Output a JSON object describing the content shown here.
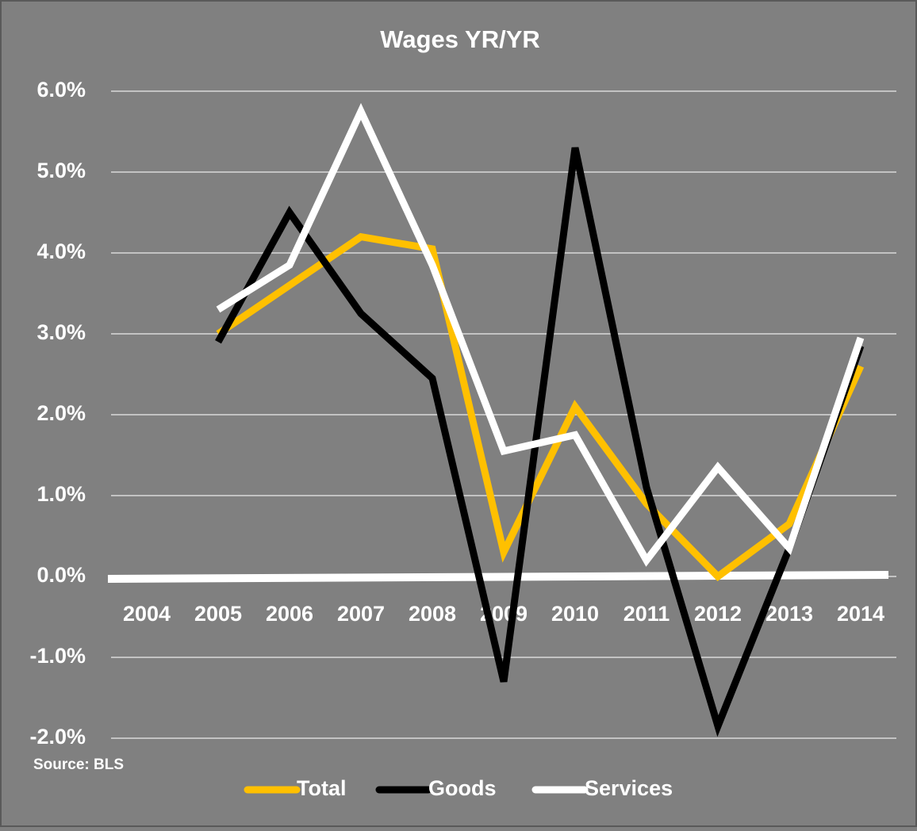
{
  "chart_data": {
    "type": "line",
    "title": "Wages YR/YR",
    "categories": [
      "2004",
      "2005",
      "2006",
      "2007",
      "2008",
      "2009",
      "2010",
      "2011",
      "2012",
      "2013",
      "2014"
    ],
    "series": [
      {
        "name": "Total",
        "color": "#FFC000",
        "values": [
          null,
          3.0,
          3.6,
          4.2,
          4.05,
          0.3,
          2.1,
          0.9,
          0.0,
          0.65,
          2.6
        ]
      },
      {
        "name": "Goods",
        "color": "#000000",
        "values": [
          null,
          2.9,
          4.5,
          3.25,
          2.45,
          -1.3,
          5.3,
          1.1,
          -1.85,
          0.35,
          2.85
        ]
      },
      {
        "name": "Services",
        "color": "#FFFFFF",
        "values": [
          null,
          3.3,
          3.85,
          5.75,
          3.85,
          1.55,
          1.75,
          0.2,
          1.35,
          0.35,
          2.95
        ]
      }
    ],
    "ylim": [
      -2,
      6
    ],
    "yticks": [
      {
        "value": 6,
        "label": "6.0%"
      },
      {
        "value": 5,
        "label": "5.0%"
      },
      {
        "value": 4,
        "label": "4.0%"
      },
      {
        "value": 3,
        "label": "3.0%"
      },
      {
        "value": 2,
        "label": "2.0%"
      },
      {
        "value": 1,
        "label": "1.0%"
      },
      {
        "value": 0,
        "label": "0.0%"
      },
      {
        "value": -1,
        "label": "-1.0%"
      },
      {
        "value": -2,
        "label": "-2.0%"
      }
    ],
    "grid": true,
    "annotation": "Source: BLS",
    "legend": "bottom"
  }
}
